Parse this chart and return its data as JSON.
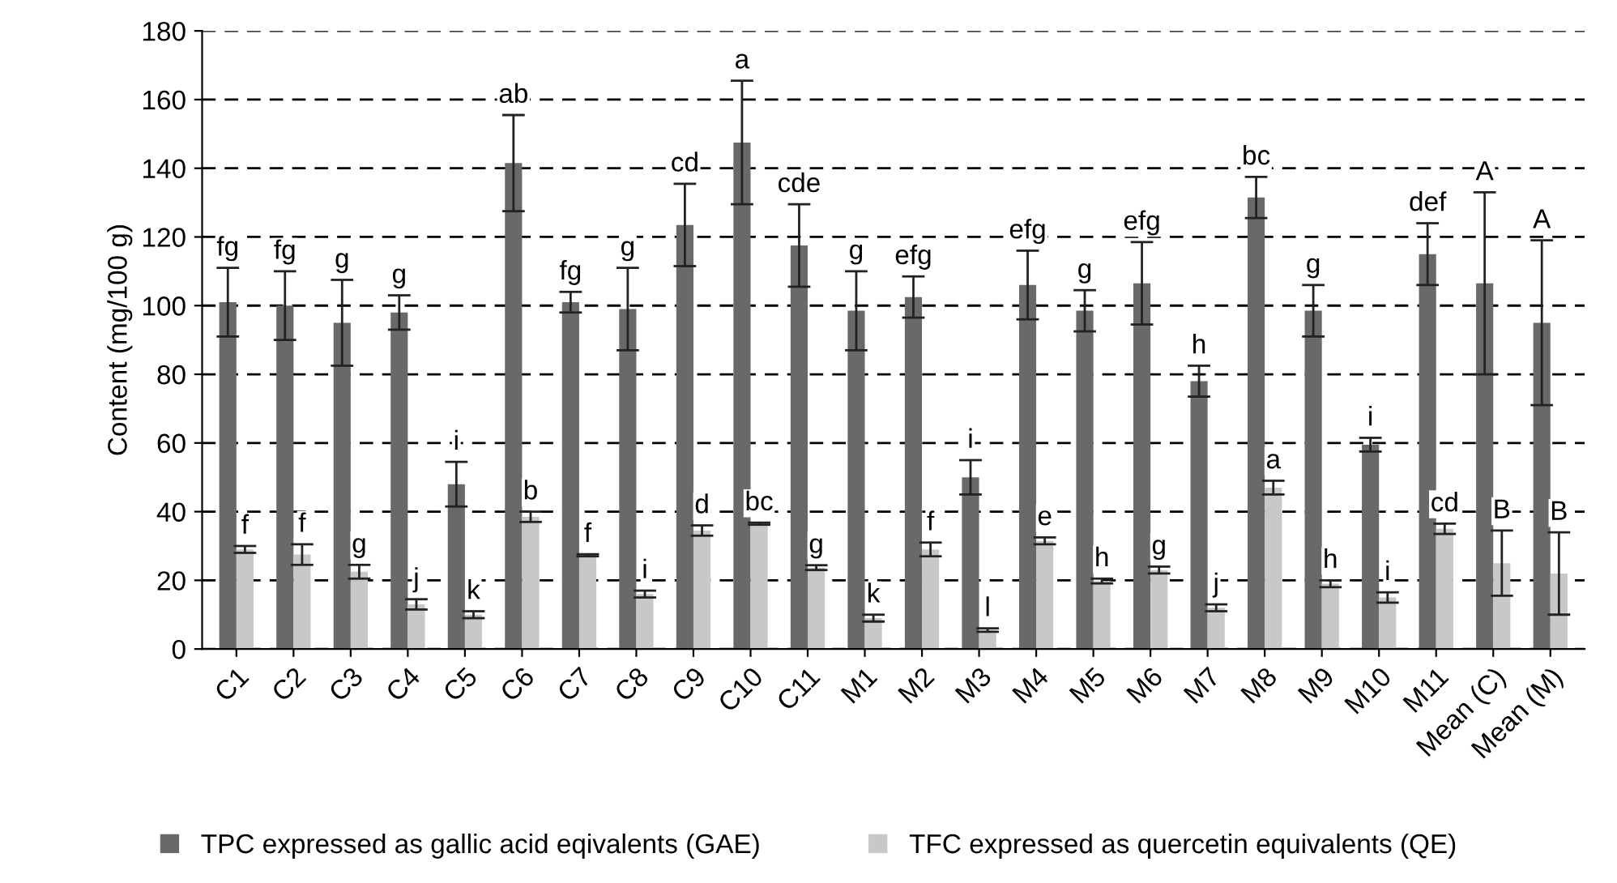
{
  "chart_data": {
    "type": "bar",
    "ylabel": "Content (mg/100 g)",
    "categories": [
      "C1",
      "C2",
      "C3",
      "C4",
      "C5",
      "C6",
      "C7",
      "C8",
      "C9",
      "C10",
      "C11",
      "M1",
      "M2",
      "M3",
      "M4",
      "M5",
      "M6",
      "M7",
      "M8",
      "M9",
      "M10",
      "M11",
      "Mean (C)",
      "Mean (M)"
    ],
    "series": [
      {
        "name": "TPC expressed as gallic acid eqivalents (GAE)",
        "color": "#696969",
        "values": [
          101,
          100,
          95,
          98,
          48,
          141.5,
          101,
          99,
          123.5,
          147.5,
          117.5,
          98.5,
          102.5,
          50,
          106,
          98.5,
          106.5,
          78,
          131.5,
          98.5,
          59.5,
          115,
          106.5,
          95
        ],
        "errors": [
          10,
          10,
          12.5,
          5,
          6.5,
          14,
          3,
          12,
          12,
          18,
          12,
          11.5,
          6,
          5,
          10,
          6,
          12,
          4.5,
          6,
          7.5,
          2,
          9,
          26.5,
          24
        ]
      },
      {
        "name": "TFC expressed as quercetin equivalents (QE)",
        "color": "#c8c8c8",
        "values": [
          29,
          27.5,
          22.5,
          13,
          10,
          38.5,
          27.3,
          16,
          34.5,
          36.5,
          23.7,
          9,
          29,
          5.5,
          31.5,
          19.8,
          23,
          12,
          47,
          19,
          15,
          35,
          25,
          22
        ],
        "errors": [
          1,
          3,
          2,
          1.5,
          1,
          1.5,
          0.3,
          1,
          1.5,
          0.3,
          0.7,
          1,
          2,
          0.5,
          1,
          0.7,
          1,
          1,
          2,
          1,
          1.5,
          1.5,
          9.5,
          12
        ]
      }
    ],
    "annotations": [
      {
        "text": "fg",
        "x": "C1",
        "y": 111
      },
      {
        "text": "fg",
        "x": "C2",
        "y": 110
      },
      {
        "text": "g",
        "x": "C3",
        "y": 107.5
      },
      {
        "text": "g",
        "x": "C4",
        "y": 103
      },
      {
        "text": "i",
        "x": "C5",
        "y": 54.5
      },
      {
        "text": "ab",
        "x": "C6",
        "y": 155.5
      },
      {
        "text": "fg",
        "x": "C7",
        "y": 104
      },
      {
        "text": "g",
        "x": "C8",
        "y": 111
      },
      {
        "text": "cd",
        "x": "C9",
        "y": 135.5
      },
      {
        "text": "a",
        "x": "C10",
        "y": 165.5
      },
      {
        "text": "cde",
        "x": "C11",
        "y": 129.5
      },
      {
        "text": "g",
        "x": "M1",
        "y": 110
      },
      {
        "text": "efg",
        "x": "M2",
        "y": 108.5
      },
      {
        "text": "i",
        "x": "M3",
        "y": 55
      },
      {
        "text": "efg",
        "x": "M4",
        "y": 116
      },
      {
        "text": "g",
        "x": "M5",
        "y": 104.5
      },
      {
        "text": "efg",
        "x": "M6",
        "y": 118.5
      },
      {
        "text": "h",
        "x": "M7",
        "y": 82.5
      },
      {
        "text": "bc",
        "x": "M8",
        "y": 137.5
      },
      {
        "text": "g",
        "x": "M9",
        "y": 106
      },
      {
        "text": "i",
        "x": "M10",
        "y": 61.5
      },
      {
        "text": "def",
        "x": "M11",
        "y": 124
      },
      {
        "text": "A",
        "x": "Mean (C)",
        "y": 133
      },
      {
        "text": "A",
        "x": "Mean (M)",
        "y": 119
      },
      {
        "text": "f",
        "x": "C1",
        "y": 30
      },
      {
        "text": "f",
        "x": "C2",
        "y": 30.5
      },
      {
        "text": "g",
        "x": "C3",
        "y": 24.5
      },
      {
        "text": "j",
        "x": "C4",
        "y": 14.5
      },
      {
        "text": "k",
        "x": "C5",
        "y": 11
      },
      {
        "text": "b",
        "x": "C6",
        "y": 40
      },
      {
        "text": "f",
        "x": "C7",
        "y": 27.6
      },
      {
        "text": "i",
        "x": "C8",
        "y": 17
      },
      {
        "text": "d",
        "x": "C9",
        "y": 36
      },
      {
        "text": "bc",
        "x": "C10",
        "y": 36.8
      },
      {
        "text": "g",
        "x": "C11",
        "y": 24.4
      },
      {
        "text": "k",
        "x": "M1",
        "y": 10
      },
      {
        "text": "f",
        "x": "M2",
        "y": 31
      },
      {
        "text": "l",
        "x": "M3",
        "y": 6
      },
      {
        "text": "e",
        "x": "M4",
        "y": 32.5
      },
      {
        "text": "h",
        "x": "M5",
        "y": 20.5
      },
      {
        "text": "g",
        "x": "M6",
        "y": 24
      },
      {
        "text": "j",
        "x": "M7",
        "y": 13
      },
      {
        "text": "a",
        "x": "M8",
        "y": 49
      },
      {
        "text": "h",
        "x": "M9",
        "y": 20
      },
      {
        "text": "i",
        "x": "M10",
        "y": 16.5
      },
      {
        "text": "cd",
        "x": "M11",
        "y": 36.5
      },
      {
        "text": "B",
        "x": "Mean (C)",
        "y": 34.5
      },
      {
        "text": "B",
        "x": "Mean (M)",
        "y": 34
      }
    ],
    "ylim": [
      0,
      180
    ],
    "yticks": [
      0,
      20,
      40,
      60,
      80,
      100,
      120,
      140,
      160,
      180
    ],
    "grid": "y",
    "legend": "bottom"
  }
}
